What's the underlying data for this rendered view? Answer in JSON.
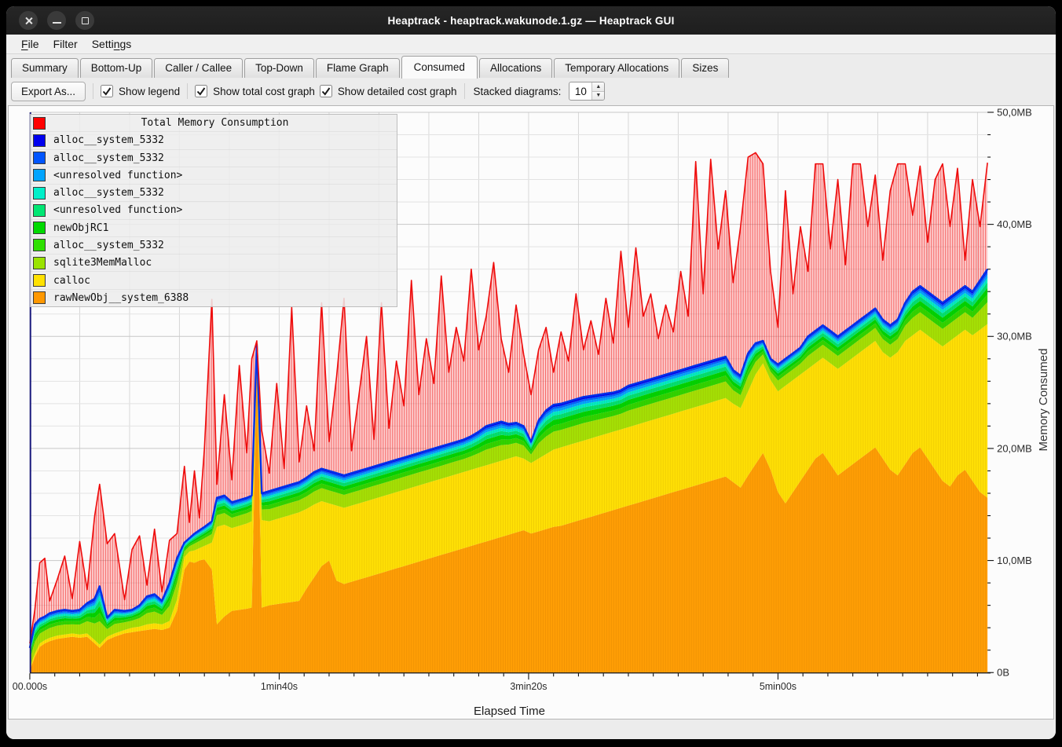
{
  "window": {
    "title": "Heaptrack - heaptrack.wakunode.1.gz — Heaptrack GUI"
  },
  "menu": {
    "items": [
      {
        "pre": "",
        "accel": "F",
        "rest": "ile"
      },
      {
        "pre": "",
        "accel": "",
        "rest": "Filter"
      },
      {
        "pre": "Setti",
        "accel": "n",
        "rest": "gs"
      }
    ]
  },
  "tabs": {
    "active": "Consumed",
    "items": [
      {
        "label": "Summary"
      },
      {
        "label": "Bottom-Up"
      },
      {
        "label": "Caller / Callee"
      },
      {
        "label": "Top-Down"
      },
      {
        "label": "Flame Graph"
      },
      {
        "label": "Consumed"
      },
      {
        "label": "Allocations"
      },
      {
        "label": "Temporary Allocations"
      },
      {
        "label": "Sizes"
      }
    ]
  },
  "toolbar": {
    "export_label": "Export As...",
    "checkboxes": [
      {
        "label": "Show legend",
        "checked": true
      },
      {
        "label": "Show total cost graph",
        "checked": true
      },
      {
        "label": "Show detailed cost graph",
        "checked": true
      }
    ],
    "stacked_label": "Stacked diagrams:",
    "stacked_value": "10"
  },
  "legend": {
    "items": [
      {
        "label": "Total Memory Consumption",
        "color": "#ff0000",
        "is_title": true
      },
      {
        "label": "alloc__system_5332",
        "color": "#0000ee"
      },
      {
        "label": "alloc__system_5332",
        "color": "#0055ff"
      },
      {
        "label": "<unresolved function>",
        "color": "#00a4ff"
      },
      {
        "label": "alloc__system_5332",
        "color": "#00efc9"
      },
      {
        "label": "<unresolved function>",
        "color": "#00e673"
      },
      {
        "label": "newObjRC1",
        "color": "#00d900"
      },
      {
        "label": "alloc__system_5332",
        "color": "#2ee000"
      },
      {
        "label": "sqlite3MemMalloc",
        "color": "#9ae300"
      },
      {
        "label": "calloc",
        "color": "#ffe100"
      },
      {
        "label": "rawNewObj__system_6388",
        "color": "#ff9800"
      }
    ]
  },
  "chart_data": {
    "type": "area",
    "stacked": true,
    "title": "Total Memory Consumption",
    "xlabel": "Elapsed Time",
    "ylabel": "Memory Consumed",
    "x_range_s": [
      0,
      384
    ],
    "y_range_mb": [
      0,
      50
    ],
    "grid": {
      "x_step_s": 20,
      "y_step_mb": 2
    },
    "x_ticks": [
      {
        "t": 0,
        "label": "00.000s"
      },
      {
        "t": 100,
        "label": "1min40s"
      },
      {
        "t": 200,
        "label": "3min20s"
      },
      {
        "t": 300,
        "label": "5min00s"
      }
    ],
    "y_ticks": [
      {
        "mb": 0,
        "label": "0B"
      },
      {
        "mb": 10,
        "label": "10,0MB"
      },
      {
        "mb": 20,
        "label": "20,0MB"
      },
      {
        "mb": 30,
        "label": "30,0MB"
      },
      {
        "mb": 40,
        "label": "40,0MB"
      },
      {
        "mb": 50,
        "label": "50,0MB"
      }
    ],
    "columns": [
      "time_s",
      "rawNewObj__system_6388_top_mb",
      "calloc_top_mb",
      "detailed_stack_top_mb",
      "total_consumption_mb"
    ],
    "base_layers": [
      {
        "name": "rawNewObj__system_6388",
        "color": "#ff9e05"
      },
      {
        "name": "calloc",
        "color": "#ffe005"
      }
    ],
    "thin_band_layers_bottom_to_top": [
      {
        "name": "sqlite3MemMalloc",
        "color": "#a4e005",
        "fraction": 0.4
      },
      {
        "name": "alloc__system_5332",
        "color": "#2fd500",
        "fraction": 0.14
      },
      {
        "name": "newObjRC1",
        "color": "#00d400",
        "fraction": 0.12
      },
      {
        "name": "<unresolved function>",
        "color": "#00e170",
        "fraction": 0.1
      },
      {
        "name": "alloc__system_5332",
        "color": "#00ecc4",
        "fraction": 0.08
      },
      {
        "name": "<unresolved function>",
        "color": "#00a4ff",
        "fraction": 0.06
      },
      {
        "name": "alloc__system_5332",
        "color": "#0064ff",
        "fraction": 0.05
      },
      {
        "name": "alloc__system_5332",
        "color": "#0000f0",
        "fraction": 0.05
      }
    ],
    "stack_top_line_color": "#0030e8",
    "total_line_color": "#ee0b0b",
    "points": [
      [
        0,
        0.2,
        0.45,
        2.2,
        2.6
      ],
      [
        2,
        1.4,
        1.7,
        4.3,
        5.6
      ],
      [
        4,
        2.3,
        2.6,
        4.8,
        9.8
      ],
      [
        6,
        2.6,
        2.9,
        5.0,
        10.2
      ],
      [
        8,
        2.8,
        3.1,
        5.3,
        6.4
      ],
      [
        11,
        3.0,
        3.3,
        5.5,
        8.3
      ],
      [
        14,
        3.1,
        3.4,
        5.6,
        10.4
      ],
      [
        17,
        3.2,
        3.5,
        5.5,
        6.6
      ],
      [
        20,
        3.1,
        3.4,
        5.6,
        11.7
      ],
      [
        23,
        3.2,
        3.5,
        6.2,
        7.4
      ],
      [
        26,
        2.6,
        2.9,
        6.6,
        14.0
      ],
      [
        28,
        2.2,
        2.5,
        7.7,
        16.8
      ],
      [
        31,
        2.9,
        3.2,
        4.9,
        11.5
      ],
      [
        34,
        3.2,
        3.5,
        5.6,
        12.4
      ],
      [
        38,
        3.5,
        3.8,
        5.5,
        6.5
      ],
      [
        41,
        3.6,
        4.0,
        5.6,
        11.0
      ],
      [
        44,
        3.7,
        4.1,
        6.0,
        12.2
      ],
      [
        47,
        3.8,
        4.3,
        6.8,
        7.8
      ],
      [
        50,
        3.9,
        4.4,
        7.0,
        12.8
      ],
      [
        53,
        3.8,
        4.3,
        6.4,
        7.2
      ],
      [
        56,
        4.0,
        4.6,
        8.0,
        11.8
      ],
      [
        59,
        5.5,
        6.5,
        10.2,
        12.4
      ],
      [
        62,
        9.2,
        10.3,
        11.6,
        18.4
      ],
      [
        64,
        9.9,
        10.8,
        12.0,
        13.4
      ],
      [
        66,
        9.8,
        10.9,
        12.4,
        18.0
      ],
      [
        68,
        10.0,
        11.1,
        12.7,
        13.8
      ],
      [
        70,
        10.1,
        11.3,
        13.0,
        20.0
      ],
      [
        73,
        9.2,
        11.6,
        13.5,
        33.3
      ],
      [
        75,
        4.3,
        13.0,
        15.6,
        16.8
      ],
      [
        78,
        5.0,
        13.2,
        15.8,
        24.8
      ],
      [
        81,
        5.5,
        12.9,
        15.2,
        17.2
      ],
      [
        84,
        5.6,
        13.1,
        15.4,
        27.4
      ],
      [
        87,
        5.7,
        13.3,
        15.6,
        19.6
      ],
      [
        89,
        5.8,
        13.5,
        15.8,
        28.0
      ],
      [
        91,
        27.8,
        28.4,
        29.3,
        29.6
      ],
      [
        93,
        5.8,
        13.6,
        16.0,
        21.6
      ],
      [
        96,
        6.0,
        13.5,
        16.2,
        17.8
      ],
      [
        99,
        6.1,
        13.7,
        16.4,
        25.8
      ],
      [
        102,
        6.2,
        13.9,
        16.6,
        18.2
      ],
      [
        105,
        6.3,
        14.1,
        16.8,
        32.6
      ],
      [
        108,
        6.4,
        14.3,
        17.0,
        18.8
      ],
      [
        111,
        7.5,
        14.6,
        17.4,
        23.8
      ],
      [
        114,
        8.5,
        15.0,
        17.9,
        19.8
      ],
      [
        117,
        9.5,
        15.3,
        18.2,
        33.0
      ],
      [
        120,
        10.0,
        15.1,
        18.0,
        20.6
      ],
      [
        123,
        8.2,
        14.9,
        17.8,
        26.4
      ],
      [
        126,
        7.9,
        14.7,
        17.6,
        33.4
      ],
      [
        129,
        8.1,
        14.9,
        17.8,
        19.8
      ],
      [
        132,
        8.3,
        15.1,
        18.0,
        24.8
      ],
      [
        135,
        8.5,
        15.3,
        18.2,
        30.0
      ],
      [
        138,
        8.7,
        15.5,
        18.4,
        20.8
      ],
      [
        141,
        8.9,
        15.7,
        18.6,
        33.0
      ],
      [
        144,
        9.1,
        15.9,
        18.8,
        21.8
      ],
      [
        147,
        9.3,
        16.1,
        19.0,
        27.8
      ],
      [
        150,
        9.5,
        16.3,
        19.2,
        23.8
      ],
      [
        153,
        9.7,
        16.5,
        19.4,
        35.0
      ],
      [
        156,
        9.9,
        16.7,
        19.6,
        24.8
      ],
      [
        159,
        10.1,
        16.9,
        19.8,
        29.8
      ],
      [
        162,
        10.3,
        17.1,
        20.0,
        25.8
      ],
      [
        165,
        10.5,
        17.3,
        20.2,
        35.4
      ],
      [
        168,
        10.7,
        17.5,
        20.4,
        26.8
      ],
      [
        171,
        10.9,
        17.7,
        20.6,
        30.8
      ],
      [
        174,
        11.1,
        17.9,
        20.8,
        27.8
      ],
      [
        177,
        11.3,
        18.1,
        21.1,
        36.0
      ],
      [
        180,
        11.5,
        18.3,
        21.5,
        28.8
      ],
      [
        183,
        11.7,
        18.5,
        22.0,
        31.8
      ],
      [
        186,
        11.9,
        18.7,
        22.2,
        36.6
      ],
      [
        189,
        12.1,
        18.9,
        22.4,
        29.8
      ],
      [
        192,
        12.3,
        19.1,
        22.2,
        26.8
      ],
      [
        195,
        12.5,
        19.3,
        22.3,
        32.8
      ],
      [
        198,
        12.7,
        19.1,
        22.0,
        28.4
      ],
      [
        201,
        12.4,
        18.7,
        20.6,
        24.8
      ],
      [
        204,
        12.6,
        19.1,
        22.5,
        28.8
      ],
      [
        207,
        12.8,
        19.5,
        23.4,
        30.8
      ],
      [
        210,
        13.0,
        19.9,
        23.9,
        26.8
      ],
      [
        213,
        13.1,
        20.1,
        24.0,
        30.4
      ],
      [
        216,
        13.3,
        20.3,
        24.2,
        27.8
      ],
      [
        219,
        13.5,
        20.5,
        24.4,
        33.8
      ],
      [
        222,
        13.7,
        20.7,
        24.6,
        28.8
      ],
      [
        225,
        13.9,
        20.9,
        24.7,
        31.4
      ],
      [
        228,
        14.1,
        21.1,
        24.8,
        28.4
      ],
      [
        231,
        14.3,
        21.3,
        24.9,
        33.4
      ],
      [
        234,
        14.5,
        21.5,
        25.0,
        29.4
      ],
      [
        237,
        14.7,
        21.7,
        25.2,
        37.6
      ],
      [
        240,
        14.9,
        21.9,
        25.6,
        30.8
      ],
      [
        243,
        15.1,
        22.1,
        25.8,
        37.9
      ],
      [
        246,
        15.3,
        22.3,
        26.0,
        31.8
      ],
      [
        249,
        15.5,
        22.5,
        26.2,
        33.8
      ],
      [
        252,
        15.7,
        22.7,
        26.4,
        29.8
      ],
      [
        255,
        15.9,
        22.9,
        26.6,
        32.8
      ],
      [
        258,
        16.1,
        23.1,
        26.8,
        30.4
      ],
      [
        261,
        16.3,
        23.3,
        27.0,
        35.8
      ],
      [
        264,
        16.5,
        23.5,
        27.2,
        31.8
      ],
      [
        267,
        16.7,
        23.7,
        27.4,
        45.6
      ],
      [
        270,
        16.9,
        23.9,
        27.6,
        33.8
      ],
      [
        273,
        17.1,
        24.1,
        27.8,
        45.8
      ],
      [
        276,
        17.3,
        24.3,
        28.0,
        37.8
      ],
      [
        279,
        17.5,
        24.5,
        28.2,
        43.0
      ],
      [
        282,
        17.0,
        24.0,
        27.0,
        34.8
      ],
      [
        285,
        16.5,
        23.6,
        26.5,
        39.8
      ],
      [
        288,
        17.6,
        25.1,
        28.5,
        46.0
      ],
      [
        291,
        18.6,
        26.6,
        29.4,
        46.4
      ],
      [
        294,
        19.6,
        27.6,
        29.6,
        45.4
      ],
      [
        297,
        18.1,
        26.1,
        28.0,
        35.8
      ],
      [
        300,
        16.1,
        25.1,
        27.5,
        30.8
      ],
      [
        303,
        15.1,
        25.6,
        28.0,
        43.0
      ],
      [
        306,
        16.1,
        26.1,
        28.5,
        33.8
      ],
      [
        309,
        17.1,
        26.6,
        29.0,
        39.8
      ],
      [
        312,
        18.1,
        27.1,
        30.0,
        35.8
      ],
      [
        315,
        19.1,
        27.6,
        30.5,
        45.4
      ],
      [
        318,
        19.6,
        28.1,
        31.0,
        45.4
      ],
      [
        321,
        18.6,
        27.6,
        30.5,
        37.8
      ],
      [
        324,
        17.6,
        27.1,
        30.0,
        44.0
      ],
      [
        327,
        18.1,
        27.6,
        30.5,
        36.4
      ],
      [
        330,
        18.6,
        28.1,
        31.0,
        45.4
      ],
      [
        333,
        19.1,
        28.6,
        31.5,
        45.4
      ],
      [
        336,
        19.6,
        29.1,
        32.0,
        39.8
      ],
      [
        339,
        20.1,
        29.6,
        32.5,
        44.4
      ],
      [
        342,
        19.1,
        28.6,
        31.5,
        36.8
      ],
      [
        345,
        18.1,
        28.1,
        31.0,
        43.0
      ],
      [
        348,
        17.6,
        28.6,
        31.5,
        45.4
      ],
      [
        351,
        18.6,
        29.6,
        33.0,
        45.4
      ],
      [
        354,
        19.6,
        30.1,
        34.0,
        40.8
      ],
      [
        357,
        20.1,
        30.6,
        34.5,
        45.2
      ],
      [
        360,
        19.1,
        30.1,
        34.0,
        38.4
      ],
      [
        363,
        18.1,
        29.6,
        33.5,
        44.0
      ],
      [
        366,
        17.1,
        29.1,
        33.0,
        45.4
      ],
      [
        369,
        16.6,
        29.6,
        33.5,
        39.8
      ],
      [
        372,
        17.6,
        30.1,
        34.0,
        45.0
      ],
      [
        375,
        18.1,
        30.6,
        34.5,
        36.8
      ],
      [
        378,
        17.1,
        30.1,
        34.0,
        44.0
      ],
      [
        381,
        16.1,
        30.6,
        35.0,
        39.8
      ],
      [
        384,
        15.6,
        31.1,
        36.0,
        45.5
      ]
    ]
  }
}
